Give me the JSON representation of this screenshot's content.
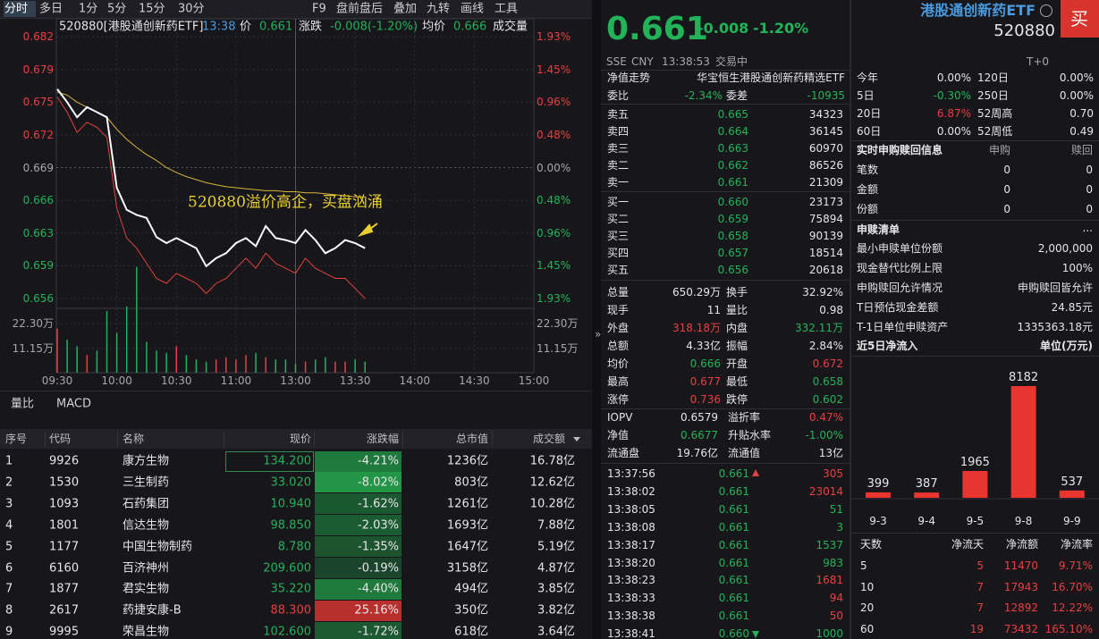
{
  "toolbar": {
    "periods": [
      "分时",
      "多日",
      "1分",
      "5分",
      "15分",
      "30分"
    ],
    "tools": [
      "F9",
      "盘前盘后",
      "叠加",
      "九转",
      "画线",
      "工具"
    ]
  },
  "chart": {
    "header": {
      "symbol": "520880[港股通创新药ETF]",
      "time": "13:38",
      "price_label": "价",
      "price": "0.661",
      "change_label": "涨跌",
      "change": "-0.008(-1.20%)",
      "avg_label": "均价",
      "avg": "0.666",
      "volume_label": "成交量"
    },
    "price_ticks": [
      0.682,
      0.679,
      0.675,
      0.672,
      0.669,
      0.666,
      0.663,
      0.659,
      0.656
    ],
    "pct_ticks": [
      "1.93%",
      "1.45%",
      "0.96%",
      "0.48%",
      "0.00%",
      "0.48%",
      "0.96%",
      "1.45%",
      "1.93%"
    ],
    "volume_ticks": [
      "22.30万",
      "11.15万"
    ],
    "times": [
      "09:30",
      "10:00",
      "10:30",
      "11:00",
      "13:00",
      "13:30",
      "14:00",
      "14:30",
      "15:00"
    ],
    "annotation": "520880溢价高企，买盘汹涌",
    "price": [
      0.6768,
      0.6755,
      0.674,
      0.675,
      0.6745,
      0.674,
      0.667,
      0.6648,
      0.6643,
      0.664,
      0.6621,
      0.6615,
      0.662,
      0.6615,
      0.661,
      0.6592,
      0.66,
      0.6605,
      0.6615,
      0.662,
      0.6612,
      0.6632,
      0.662,
      0.6618,
      0.6615,
      0.6628,
      0.6618,
      0.6605,
      0.661,
      0.6618,
      0.6615,
      0.661
    ],
    "average": [
      0.6765,
      0.6762,
      0.6755,
      0.675,
      0.6745,
      0.674,
      0.6728,
      0.6718,
      0.671,
      0.6703,
      0.6697,
      0.669,
      0.6685,
      0.6681,
      0.6678,
      0.6675,
      0.6673,
      0.6671,
      0.667,
      0.6669,
      0.6668,
      0.6667,
      0.6667,
      0.6666,
      0.6666,
      0.6665,
      0.6665,
      0.6664,
      0.6663,
      0.6662,
      0.6661,
      0.6661
    ],
    "iopv": [
      0.676,
      0.6745,
      0.6725,
      0.6735,
      0.673,
      0.672,
      0.665,
      0.662,
      0.661,
      0.6595,
      0.658,
      0.6575,
      0.6585,
      0.658,
      0.6575,
      0.6565,
      0.6575,
      0.658,
      0.659,
      0.66,
      0.659,
      0.6605,
      0.6595,
      0.659,
      0.6585,
      0.66,
      0.659,
      0.6585,
      0.658,
      0.658,
      0.657,
      0.656
    ],
    "volume": [
      20,
      15,
      12,
      8,
      10,
      28,
      18,
      30,
      48,
      14,
      10,
      9,
      12,
      8,
      6,
      5,
      6,
      7,
      6,
      8,
      9,
      7,
      6,
      6,
      4,
      5,
      6,
      7,
      5,
      5,
      6,
      5
    ]
  },
  "indicator_tabs": [
    "量比",
    "MACD"
  ],
  "table": {
    "columns": [
      "序号",
      "代码",
      "名称",
      "现价",
      "涨跌幅",
      "总市值",
      "成交额"
    ],
    "rows": [
      [
        "1",
        "9926",
        "康方生物",
        "134.200",
        "-4.21%",
        "1236亿",
        "16.78亿"
      ],
      [
        "2",
        "1530",
        "三生制药",
        "33.020",
        "-8.02%",
        "803亿",
        "12.62亿"
      ],
      [
        "3",
        "1093",
        "石药集团",
        "10.940",
        "-1.62%",
        "1261亿",
        "10.28亿"
      ],
      [
        "4",
        "1801",
        "信达生物",
        "98.850",
        "-2.03%",
        "1693亿",
        "7.88亿"
      ],
      [
        "5",
        "1177",
        "中国生物制药",
        "8.780",
        "-1.35%",
        "1647亿",
        "5.19亿"
      ],
      [
        "6",
        "6160",
        "百济神州",
        "209.600",
        "-0.19%",
        "3158亿",
        "4.87亿"
      ],
      [
        "7",
        "1877",
        "君实生物",
        "35.220",
        "-4.40%",
        "494亿",
        "3.85亿"
      ],
      [
        "8",
        "2617",
        "药捷安康-B",
        "88.300",
        "25.16%",
        "350亿",
        "3.82亿"
      ],
      [
        "9",
        "9995",
        "荣昌生物",
        "102.600",
        "-1.72%",
        "618亿",
        "3.64亿"
      ]
    ]
  },
  "quote": {
    "price": "0.661",
    "change": "-0.008",
    "change_pct": "-1.20%",
    "name": "港股通创新药ETF",
    "code": "520880",
    "buy": "买",
    "status": [
      "SSE",
      "CNY",
      "13:38:53",
      "交易中"
    ],
    "t0": "T+0",
    "nav_label": "净值走势",
    "fund_name": "华宝恒生港股通创新药精选ETF",
    "ratio": [
      "委比",
      "-2.34%",
      "委差",
      "-10935"
    ],
    "book": [
      [
        "卖五",
        "0.665",
        "34323"
      ],
      [
        "卖四",
        "0.664",
        "36145"
      ],
      [
        "卖三",
        "0.663",
        "60970"
      ],
      [
        "卖二",
        "0.662",
        "86526"
      ],
      [
        "卖一",
        "0.661",
        "21309"
      ],
      [
        "买一",
        "0.660",
        "23173"
      ],
      [
        "买二",
        "0.659",
        "75894"
      ],
      [
        "买三",
        "0.658",
        "90139"
      ],
      [
        "买四",
        "0.657",
        "18514"
      ],
      [
        "买五",
        "0.656",
        "20618"
      ]
    ],
    "stats": [
      [
        "总量",
        "650.29万",
        "换手",
        "32.92%"
      ],
      [
        "现手",
        "11",
        "量比",
        "0.98"
      ],
      [
        "外盘",
        "318.18万",
        "内盘",
        "332.11万"
      ],
      [
        "总额",
        "4.33亿",
        "振幅",
        "2.84%"
      ],
      [
        "均价",
        "0.666",
        "开盘",
        "0.672"
      ],
      [
        "最高",
        "0.677",
        "最低",
        "0.658"
      ],
      [
        "涨停",
        "0.736",
        "跌停",
        "0.602"
      ]
    ],
    "etf": [
      [
        "IOPV",
        "0.6579",
        "溢折率",
        "0.47%"
      ],
      [
        "净值",
        "0.6677",
        "升贴水率",
        "-1.00%"
      ],
      [
        "流通盘",
        "19.76亿",
        "流通值",
        "13亿"
      ]
    ],
    "trades": [
      [
        "13:37:56",
        "0.661",
        "305"
      ],
      [
        "13:38:02",
        "0.661",
        "23014"
      ],
      [
        "13:38:05",
        "0.661",
        "51"
      ],
      [
        "13:38:08",
        "0.661",
        "3"
      ],
      [
        "13:38:17",
        "0.661",
        "1537"
      ],
      [
        "13:38:20",
        "0.661",
        "983"
      ],
      [
        "13:38:23",
        "0.661",
        "1681"
      ],
      [
        "13:38:33",
        "0.661",
        "94"
      ],
      [
        "13:38:38",
        "0.661",
        "50"
      ],
      [
        "13:38:41",
        "0.660",
        "1000"
      ]
    ]
  },
  "performance": [
    [
      "今年",
      "0.00%",
      "120日",
      "0.00%"
    ],
    [
      "5日",
      "-0.30%",
      "250日",
      "0.00%"
    ],
    [
      "20日",
      "6.87%",
      "52周高",
      "0.70"
    ],
    [
      "60日",
      "0.00%",
      "52周低",
      "0.49"
    ]
  ],
  "subscription": {
    "title": "实时申购赎回信息",
    "columns": [
      "申购",
      "赎回"
    ],
    "rows": [
      [
        "笔数",
        "0",
        "0"
      ],
      [
        "金额",
        "0",
        "0"
      ],
      [
        "份额",
        "0",
        "0"
      ]
    ]
  },
  "creation_list": {
    "title": "申赎清单",
    "more": "...",
    "rows": [
      [
        "最小申赎单位份额",
        "2,000,000"
      ],
      [
        "现金替代比例上限",
        "100%"
      ],
      [
        "申购赎回允许情况",
        "申购赎回皆允许"
      ],
      [
        "T日预估现金差额",
        "24.85元"
      ],
      [
        "T-1日单位申赎资产",
        "1335363.18元"
      ]
    ]
  },
  "net_inflow": {
    "title": "近5日净流入",
    "unit": "单位(万元)",
    "dates": [
      "9-3",
      "9-4",
      "9-5",
      "9-8",
      "9-9"
    ],
    "values": [
      399,
      387,
      1965,
      8182,
      537
    ],
    "columns": [
      "天数",
      "净流天",
      "净流额",
      "净流率"
    ],
    "rows": [
      [
        "5",
        "5",
        "11470",
        "9.71%"
      ],
      [
        "10",
        "7",
        "17943",
        "16.70%"
      ],
      [
        "20",
        "7",
        "12892",
        "12.22%"
      ],
      [
        "60",
        "19",
        "73432",
        "165.10%"
      ]
    ]
  }
}
